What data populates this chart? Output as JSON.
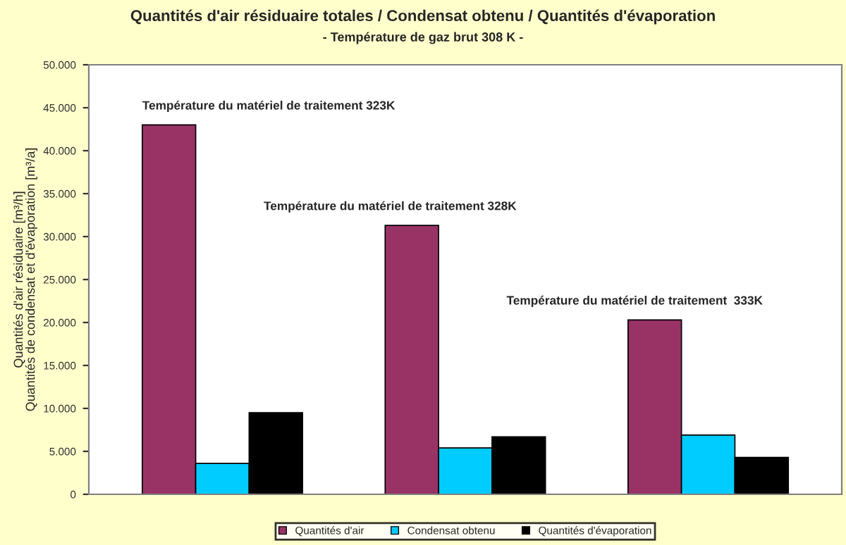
{
  "chart_data": {
    "type": "bar",
    "title": "Quantités d'air résiduaire totales / Condensat obtenu / Quantités d'évaporation",
    "subtitle": "- Température de gaz brut 308 K -",
    "ylabel": "Quantités d'air résiduaire [m³/h]\nQuantités de condensat et d'évaporation [m³/a]",
    "categories": [
      null,
      null,
      null
    ],
    "series": [
      {
        "name": "Quantités d'air",
        "color": "#993366",
        "values": [
          43000,
          31300,
          20300
        ]
      },
      {
        "name": "Condensat obtenu",
        "color": "#00ccff",
        "values": [
          3600,
          5400,
          6900
        ]
      },
      {
        "name": "Quantités d'évaporation",
        "color": "#000000",
        "values": [
          9500,
          6700,
          4300
        ]
      }
    ],
    "annotations": [
      "Température du matériel de traitement 323K",
      "Température du matériel de traitement 328K",
      "Température du matériel de traitement  333K"
    ],
    "ylim": [
      0,
      50000
    ],
    "yticks": [
      0,
      {
        "value": 5000,
        "label": "5.000"
      },
      {
        "value": 10000,
        "label": "10.000"
      },
      {
        "value": 15000,
        "label": "15.000"
      },
      {
        "value": 20000,
        "label": "20.000"
      },
      {
        "value": 25000,
        "label": "25.000"
      },
      {
        "value": 30000,
        "label": "30.000"
      },
      {
        "value": 35000,
        "label": "35.000"
      },
      {
        "value": 40000,
        "label": "40.000"
      },
      {
        "value": 45000,
        "label": "45.000"
      },
      {
        "value": 50000,
        "label": "50.000"
      }
    ],
    "grid": false,
    "legend": "bottom"
  }
}
